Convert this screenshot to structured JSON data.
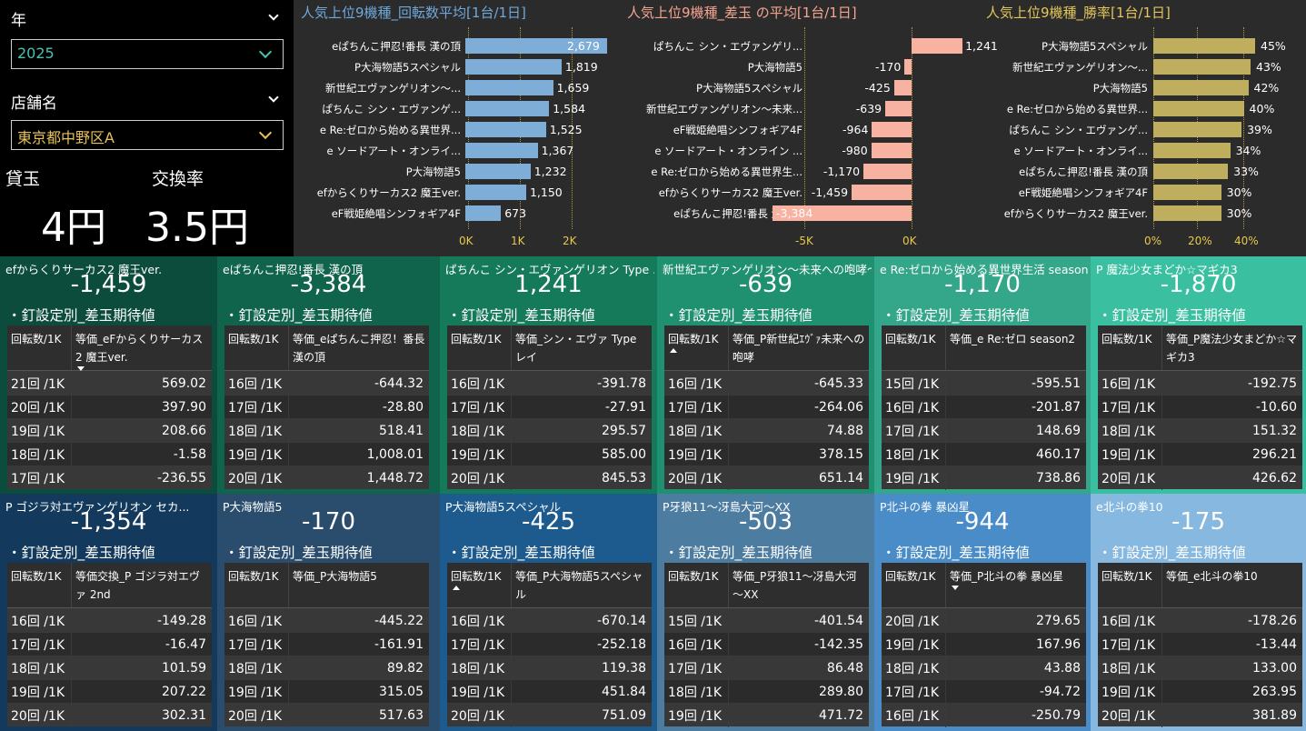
{
  "filters": {
    "year": {
      "label": "年",
      "value": "2025",
      "color": "#49c1b0"
    },
    "store": {
      "label": "店舗名",
      "value": "東京都中野区A",
      "color": "#e6c15a"
    }
  },
  "kpis": {
    "kashidama_label": "貸玉",
    "kashidama_value": "4円",
    "exchange_label": "交換率",
    "exchange_value": "3.5円"
  },
  "chart_data": [
    {
      "type": "bar",
      "title": "人気上位9機種_回転数平均[1台/1日]",
      "title_color": "#6fa8dc",
      "bar_color": "#7eadd8",
      "categories": [
        "eぱちんこ押忍!番長 漢の頂",
        "P大海物語5スペシャル",
        "新世紀エヴァンゲリオン～...",
        "ぱちんこ シン・エヴァンゲ...",
        "e Re:ゼロから始める異世界...",
        "e ソードアート・オンライ...",
        "P大海物語5",
        "efからくりサーカス2 魔王ver.",
        "eF戦姫絶唱シンフォギア4F"
      ],
      "values": [
        2679,
        1819,
        1659,
        1584,
        1525,
        1367,
        1232,
        1150,
        673
      ],
      "value_labels": [
        "2,679",
        "1,819",
        "1,659",
        "1,584",
        "1,525",
        "1,367",
        "1,232",
        "1,150",
        "673"
      ],
      "xlim": [
        0,
        2679
      ],
      "ticks": [
        "0K",
        "1K",
        "2K"
      ]
    },
    {
      "type": "bar",
      "title": "人気上位9機種_差玉 の平均[1台/1日]",
      "title_color": "#f4a58f",
      "bar_color": "#f7b2a2",
      "categories": [
        "ぱちんこ シン・エヴァンゲリ...",
        "P大海物語5",
        "P大海物語5スペシャル",
        "新世紀エヴァンゲリオン～未来...",
        "eF戦姫絶唱シンフォギア4F",
        "e ソードアート・オンライン ...",
        "e Re:ゼロから始める異世界生...",
        "efからくりサーカス2 魔王ver.",
        "eぱちんこ押忍!番長 漢の頂"
      ],
      "values": [
        1241,
        -170,
        -425,
        -639,
        -964,
        -980,
        -1170,
        -1459,
        -3384
      ],
      "value_labels": [
        "1,241",
        "-170",
        "-425",
        "-639",
        "-964",
        "-980",
        "-1,170",
        "-1,459",
        "-3,384"
      ],
      "xlim": [
        -3384,
        1241
      ],
      "ticks": [
        "-5K",
        "0K"
      ]
    },
    {
      "type": "bar",
      "title": "人気上位9機種_勝率[1台/1日]",
      "title_color": "#e2c55b",
      "bar_color": "#bfae5e",
      "categories": [
        "P大海物語5スペシャル",
        "新世紀エヴァンゲリオン～...",
        "P大海物語5",
        "e Re:ゼロから始める異世界...",
        "ぱちんこ シン・エヴァンゲ...",
        "e ソードアート・オンライ...",
        "eぱちんこ押忍!番長 漢の頂",
        "eF戦姫絶唱シンフォギア4F",
        "efからくりサーカス2 魔王ver."
      ],
      "values": [
        45,
        43,
        42,
        40,
        39,
        34,
        33,
        30,
        30
      ],
      "value_labels": [
        "45%",
        "43%",
        "42%",
        "40%",
        "39%",
        "34%",
        "33%",
        "30%",
        "30%"
      ],
      "xlim": [
        0,
        45
      ],
      "ticks": [
        "0%",
        "20%",
        "40%"
      ]
    }
  ],
  "panels": [
    {
      "title": "efからくりサーカス2 魔王ver.",
      "value": "-1,459",
      "subtitle": "・釘設定別_差玉期待値",
      "col1": "回転数/1K",
      "col2": "等価_eFからくりサーカス2 魔王ver.",
      "sort": "down",
      "rows": [
        [
          "21回 /1K",
          "569.02"
        ],
        [
          "20回 /1K",
          "397.90"
        ],
        [
          "19回 /1K",
          "208.66"
        ],
        [
          "18回 /1K",
          "-1.58"
        ],
        [
          "17回 /1K",
          "-236.55"
        ]
      ],
      "bg": "#0c4c3c"
    },
    {
      "title": "eぱちんこ押忍!番長 漢の頂",
      "value": "-3,384",
      "subtitle": "・釘設定別_差玉期待値",
      "col1": "回転数/1K",
      "col2": "等価_eぱちんこ押忍！番長 漢の頂",
      "sort": "",
      "rows": [
        [
          "16回 /1K",
          "-644.32"
        ],
        [
          "17回 /1K",
          "-28.80"
        ],
        [
          "18回 /1K",
          "518.41"
        ],
        [
          "19回 /1K",
          "1,008.01"
        ],
        [
          "20回 /1K",
          "1,448.72"
        ]
      ],
      "bg": "#11644c"
    },
    {
      "title": "ぱちんこ シン・エヴァンゲリオン Type ...",
      "value": "1,241",
      "subtitle": "・釘設定別_差玉期待値",
      "col1": "回転数/1K",
      "col2": "等価_シン・エヴァ Type レイ",
      "sort": "",
      "rows": [
        [
          "16回 /1K",
          "-391.78"
        ],
        [
          "17回 /1K",
          "-27.91"
        ],
        [
          "18回 /1K",
          "295.57"
        ],
        [
          "19回 /1K",
          "585.00"
        ],
        [
          "20回 /1K",
          "845.53"
        ]
      ],
      "bg": "#157a5a"
    },
    {
      "title": "新世紀エヴァンゲリオン～未来への咆哮～",
      "value": "-639",
      "subtitle": "・釘設定別_差玉期待値",
      "col1": "回転数/1K",
      "col2": "等価_P新世紀ｴｳﾞｧ未来への咆哮",
      "sort": "up",
      "rows": [
        [
          "16回 /1K",
          "-645.33"
        ],
        [
          "17回 /1K",
          "-264.06"
        ],
        [
          "18回 /1K",
          "74.88"
        ],
        [
          "19回 /1K",
          "378.15"
        ],
        [
          "20回 /1K",
          "651.14"
        ]
      ],
      "bg": "#1f9070"
    },
    {
      "title": "e Re:ゼロから始める異世界生活 season2",
      "value": "-1,170",
      "subtitle": "・釘設定別_差玉期待値",
      "col1": "回転数/1K",
      "col2": "等価_e Re:ゼロ season2",
      "sort": "",
      "rows": [
        [
          "15回 /1K",
          "-595.51"
        ],
        [
          "16回 /1K",
          "-201.87"
        ],
        [
          "17回 /1K",
          "148.69"
        ],
        [
          "18回 /1K",
          "460.17"
        ],
        [
          "19回 /1K",
          "738.86"
        ]
      ],
      "bg": "#34a68a"
    },
    {
      "title": "P 魔法少女まどか☆マギカ3",
      "value": "-1,870",
      "subtitle": "・釘設定別_差玉期待値",
      "col1": "回転数/1K",
      "col2": "等価_P魔法少女まどか☆マギカ3",
      "sort": "",
      "rows": [
        [
          "16回 /1K",
          "-192.75"
        ],
        [
          "17回 /1K",
          "-10.60"
        ],
        [
          "18回 /1K",
          "151.32"
        ],
        [
          "19回 /1K",
          "296.21"
        ],
        [
          "20回 /1K",
          "426.62"
        ]
      ],
      "bg": "#3ac0a0"
    },
    {
      "title": "P ゴジラ対エヴァンゲリオン セカ...",
      "value": "-1,354",
      "subtitle": "・釘設定別_差玉期待値",
      "col1": "回転数/1K",
      "col2": "等価交換_P ゴジラ対エヴァ 2nd",
      "sort": "",
      "rows": [
        [
          "16回 /1K",
          "-149.28"
        ],
        [
          "17回 /1K",
          "-16.47"
        ],
        [
          "18回 /1K",
          "101.59"
        ],
        [
          "19回 /1K",
          "207.22"
        ],
        [
          "20回 /1K",
          "302.31"
        ]
      ],
      "bg": "#133a5c"
    },
    {
      "title": "P大海物語5",
      "value": "-170",
      "subtitle": "・釘設定別_差玉期待値",
      "col1": "回転数/1K",
      "col2": "等価_P大海物語5",
      "sort": "",
      "rows": [
        [
          "16回 /1K",
          "-445.22"
        ],
        [
          "17回 /1K",
          "-161.91"
        ],
        [
          "18回 /1K",
          "89.82"
        ],
        [
          "19回 /1K",
          "315.05"
        ],
        [
          "20回 /1K",
          "517.63"
        ]
      ],
      "bg": "#2a4d6e"
    },
    {
      "title": "P大海物語5スペシャル",
      "value": "-425",
      "subtitle": "・釘設定別_差玉期待値",
      "col1": "回転数/1K",
      "col2": "等価_P大海物語5スペシャル",
      "sort": "up",
      "rows": [
        [
          "16回 /1K",
          "-670.14"
        ],
        [
          "17回 /1K",
          "-252.18"
        ],
        [
          "18回 /1K",
          "119.38"
        ],
        [
          "19回 /1K",
          "451.84"
        ],
        [
          "20回 /1K",
          "751.09"
        ]
      ],
      "bg": "#1d5a8e"
    },
    {
      "title": "P牙狼11～冴島大河～XX",
      "value": "-503",
      "subtitle": "・釘設定別_差玉期待値",
      "col1": "回転数/1K",
      "col2": "等価_P牙狼11～冴島大河～XX",
      "sort": "",
      "rows": [
        [
          "15回 /1K",
          "-401.54"
        ],
        [
          "16回 /1K",
          "-142.35"
        ],
        [
          "17回 /1K",
          "86.48"
        ],
        [
          "18回 /1K",
          "289.80"
        ],
        [
          "19回 /1K",
          "471.72"
        ]
      ],
      "bg": "#4c7ca0"
    },
    {
      "title": "P北斗の拳 暴凶星",
      "value": "-944",
      "subtitle": "・釘設定別_差玉期待値",
      "col1": "回転数/1K",
      "col2": "等価_P北斗の拳 暴凶星",
      "sort": "down",
      "rows": [
        [
          "20回 /1K",
          "279.65"
        ],
        [
          "19回 /1K",
          "167.96"
        ],
        [
          "18回 /1K",
          "43.88"
        ],
        [
          "17回 /1K",
          "-94.72"
        ],
        [
          "16回 /1K",
          "-250.79"
        ]
      ],
      "bg": "#4a8cc8"
    },
    {
      "title": "e北斗の拳10",
      "value": "-175",
      "subtitle": "・釘設定別_差玉期待値",
      "col1": "回転数/1K",
      "col2": "等価_e北斗の拳10",
      "sort": "",
      "rows": [
        [
          "16回 /1K",
          "-178.26"
        ],
        [
          "17回 /1K",
          "-13.44"
        ],
        [
          "18回 /1K",
          "133.00"
        ],
        [
          "19回 /1K",
          "263.95"
        ],
        [
          "20回 /1K",
          "381.89"
        ]
      ],
      "bg": "#86b8e0"
    }
  ]
}
